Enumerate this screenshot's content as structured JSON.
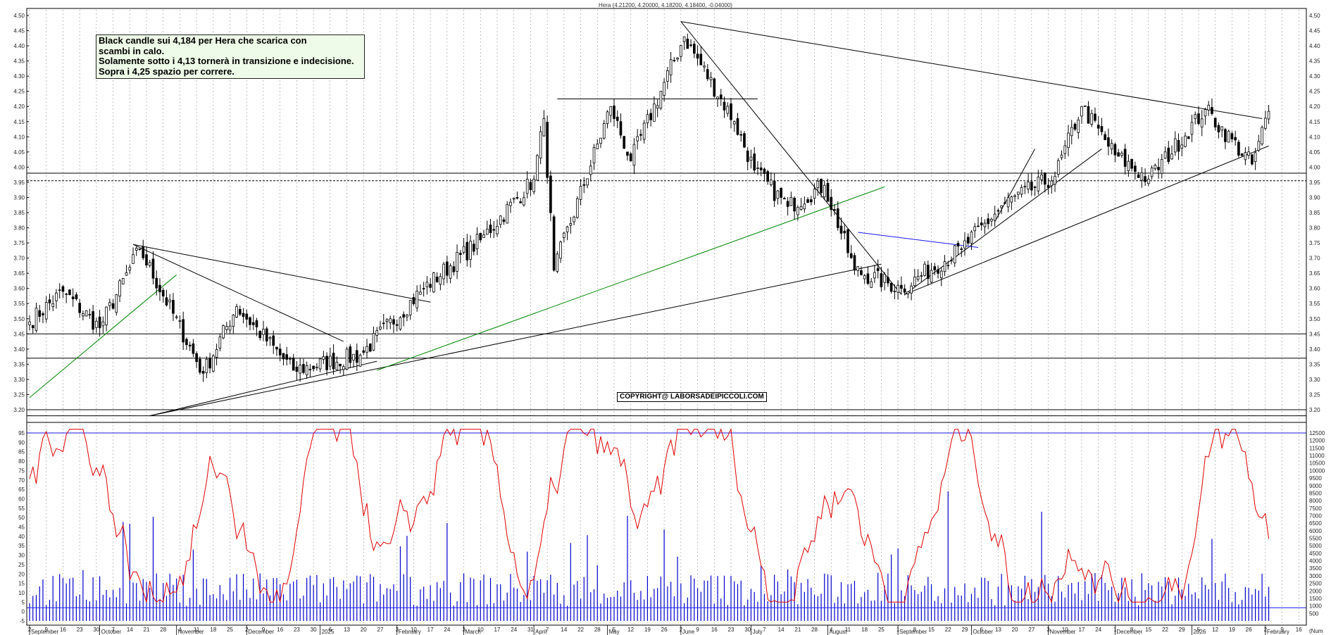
{
  "header": {
    "instrument": "Hera (4.21200, 4.20000, 4.18200, 4.18400, -0.04000)"
  },
  "note": {
    "lines": [
      "Black candle sui 4,184 per Hera che scarica con",
      "scambi in calo.",
      "Solamente sotto i 4,13 tornerà in transizione e indecisione.",
      "Sopra i 4,25 spazio per correre."
    ]
  },
  "copyright": "COPYRIGHT@ LABORSADEIPICCOLI.COM",
  "colors": {
    "candle": "#000000",
    "volume": "#0000cc",
    "oscillator": "#e00000",
    "support_line": "#000000",
    "green_trend": "#008800",
    "blue_trend": "#1a1aff"
  },
  "chart_data": [
    {
      "type": "candlestick",
      "price_axis": {
        "ylim": [
          3.2,
          4.5
        ],
        "ticks": [
          "3.20",
          "3.25",
          "3.30",
          "3.35",
          "3.40",
          "3.45",
          "3.50",
          "3.55",
          "3.60",
          "3.65",
          "3.70",
          "3.75",
          "3.80",
          "3.85",
          "3.90",
          "3.95",
          "4.00",
          "4.05",
          "4.10",
          "4.15",
          "4.20",
          "4.25",
          "4.30",
          "4.35",
          "4.40",
          "4.45",
          "4.50"
        ]
      },
      "key_points": [
        {
          "date": "2024-09-02",
          "close": 3.49
        },
        {
          "date": "2024-09-16",
          "close": 3.59
        },
        {
          "date": "2024-10-01",
          "close": 3.47
        },
        {
          "date": "2024-10-17",
          "close": 3.73
        },
        {
          "date": "2024-11-13",
          "close": 3.32
        },
        {
          "date": "2024-11-27",
          "close": 3.54
        },
        {
          "date": "2024-12-20",
          "close": 3.33
        },
        {
          "date": "2025-01-17",
          "close": 3.38
        },
        {
          "date": "2025-02-13",
          "close": 3.6
        },
        {
          "date": "2025-03-10",
          "close": 3.76
        },
        {
          "date": "2025-04-01",
          "close": 3.96
        },
        {
          "date": "2025-04-04",
          "close": 4.16
        },
        {
          "date": "2025-04-09",
          "close": 3.66
        },
        {
          "date": "2025-05-02",
          "close": 4.2
        },
        {
          "date": "2025-05-12",
          "close": 4.02
        },
        {
          "date": "2025-06-03",
          "close": 4.43
        },
        {
          "date": "2025-06-24",
          "close": 4.15
        },
        {
          "date": "2025-07-02",
          "close": 3.99
        },
        {
          "date": "2025-07-16",
          "close": 3.87
        },
        {
          "date": "2025-07-31",
          "close": 3.94
        },
        {
          "date": "2025-08-13",
          "close": 3.66
        },
        {
          "date": "2025-09-02",
          "close": 3.6
        },
        {
          "date": "2025-09-26",
          "close": 3.73
        },
        {
          "date": "2025-10-15",
          "close": 3.88
        },
        {
          "date": "2025-11-05",
          "close": 3.97
        },
        {
          "date": "2025-11-17",
          "close": 4.2
        },
        {
          "date": "2025-12-01",
          "close": 4.04
        },
        {
          "date": "2025-12-15",
          "close": 3.96
        },
        {
          "date": "2026-01-07",
          "close": 4.19
        },
        {
          "date": "2026-01-27",
          "close": 4.01
        },
        {
          "date": "2026-02-03",
          "close": 4.184
        }
      ],
      "horizontal_levels": [
        3.98,
        3.955,
        3.45,
        3.37,
        3.2,
        3.18
      ],
      "volume_axis": {
        "ylim": [
          0,
          12500
        ],
        "ticks": [
          "500",
          "1000",
          "1500",
          "2000",
          "2500",
          "3000",
          "3500",
          "4000",
          "4500",
          "5000",
          "5500",
          "6000",
          "6500",
          "7000",
          "7500",
          "8000",
          "8500",
          "9000",
          "9500",
          "10000",
          "10500",
          "11000",
          "11500",
          "12000",
          "12500"
        ],
        "unit_label": "(Num"
      },
      "oscillator_axis": {
        "ylim": [
          -5,
          95
        ],
        "ticks": [
          "-5",
          "0",
          "5",
          "10",
          "15",
          "20",
          "25",
          "30",
          "35",
          "40",
          "45",
          "50",
          "55",
          "60",
          "65",
          "70",
          "75",
          "80",
          "85",
          "90",
          "95"
        ]
      },
      "oscillator_levels": [
        95,
        2
      ],
      "x_axis": {
        "day_ticks": [
          "2",
          "9",
          "16",
          "23",
          "30",
          "7",
          "14",
          "21",
          "28",
          "4",
          "11",
          "18",
          "25",
          "2",
          "9",
          "16",
          "23",
          "30",
          "6",
          "13",
          "20",
          "27",
          "3",
          "10",
          "17",
          "24",
          "3",
          "10",
          "17",
          "24",
          "31",
          "7",
          "14",
          "22",
          "28",
          "5",
          "12",
          "19",
          "26",
          "2",
          "9",
          "16",
          "23",
          "30",
          "7",
          "14",
          "21",
          "28",
          "4",
          "11",
          "18",
          "25",
          "1",
          "8",
          "15",
          "22",
          "29",
          "6",
          "13",
          "20",
          "27",
          "3",
          "10",
          "17",
          "24",
          "1",
          "8",
          "15",
          "22",
          "29",
          "5",
          "12",
          "19",
          "26",
          "2",
          "9",
          "16"
        ],
        "month_labels": [
          "September",
          "October",
          "November",
          "December",
          "2025",
          "February",
          "March",
          "April",
          "May",
          "June",
          "July",
          "August",
          "September",
          "October",
          "November",
          "December",
          "2026",
          "February"
        ]
      }
    }
  ]
}
